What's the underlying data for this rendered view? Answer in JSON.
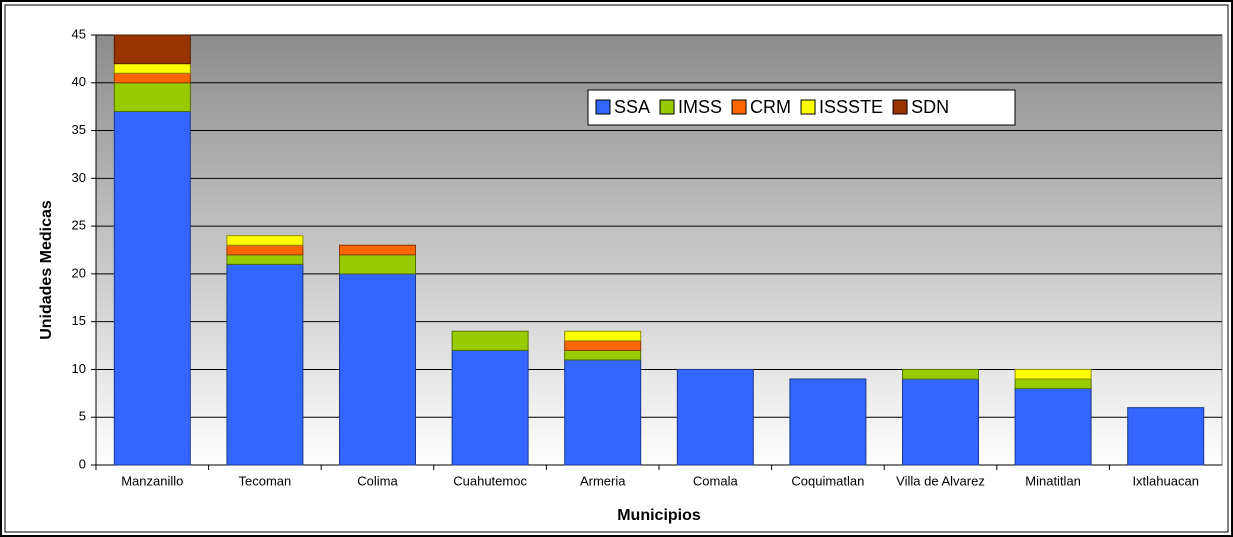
{
  "chart_data": {
    "type": "stacked_bar",
    "xlabel": "Municipios",
    "ylabel": "Unidades Medicas",
    "categories": [
      "Manzanillo",
      "Tecoman",
      "Colima",
      "Cuahutemoc",
      "Armeria",
      "Comala",
      "Coquimatlan",
      "Villa de Alvarez",
      "Minatitlan",
      "Ixtlahuacan"
    ],
    "series": [
      {
        "name": "SSA",
        "color": "#3366ff",
        "values": [
          37,
          21,
          20,
          12,
          11,
          10,
          9,
          9,
          8,
          6
        ]
      },
      {
        "name": "IMSS",
        "color": "#99cc00",
        "values": [
          3,
          1,
          2,
          2,
          1,
          0,
          0,
          1,
          1,
          0
        ]
      },
      {
        "name": "CRM",
        "color": "#ff6600",
        "values": [
          1,
          1,
          1,
          0,
          1,
          0,
          0,
          0,
          0,
          0
        ]
      },
      {
        "name": "ISSSTE",
        "color": "#ffff00",
        "values": [
          1,
          1,
          0,
          0,
          1,
          0,
          0,
          0,
          1,
          0
        ]
      },
      {
        "name": "SDN",
        "color": "#993300",
        "values": [
          3,
          0,
          0,
          0,
          0,
          0,
          0,
          0,
          0,
          0
        ]
      }
    ],
    "ylim": [
      0,
      45
    ],
    "yticks": [
      0,
      5,
      10,
      15,
      20,
      25,
      30,
      35,
      40,
      45
    ],
    "grid": true,
    "legend": "top-center"
  }
}
